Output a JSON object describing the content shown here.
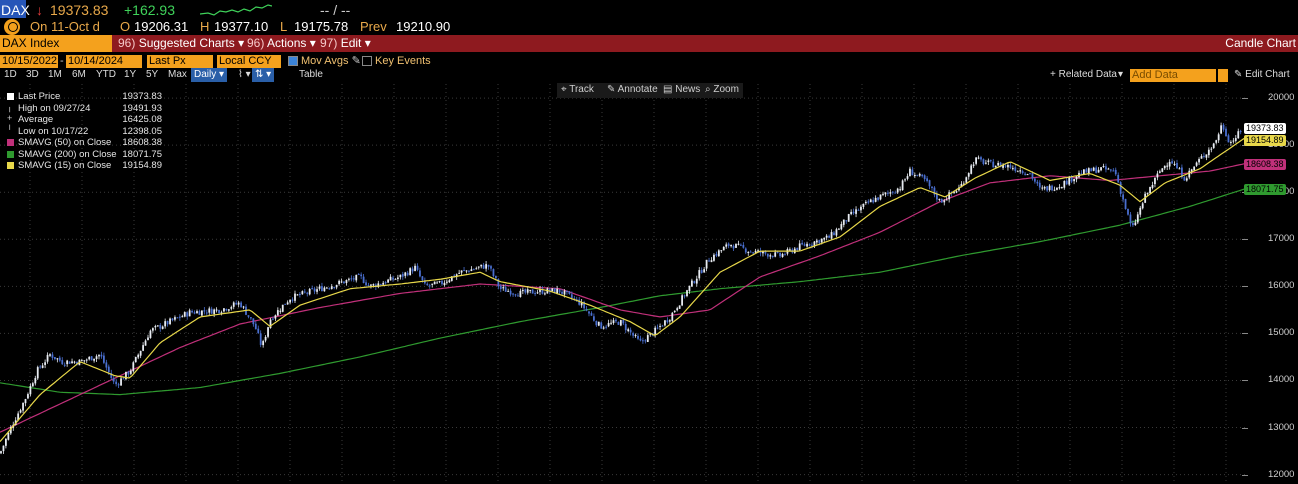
{
  "ticker": {
    "symbol": "DAX",
    "arrow": "↓",
    "last": "19373.83",
    "change": "+162.93",
    "on_label": "On 11-Oct d",
    "open_label": "O",
    "open": "19206.31",
    "high_label": "H",
    "high": "19377.10",
    "low_label": "L",
    "low": "19175.78",
    "prev_label": "Prev",
    "prev": "19210.90",
    "bid_ask": "-- / --"
  },
  "menubar": {
    "security": "DAX Index",
    "items": [
      {
        "num": "96)",
        "label": "Suggested Charts"
      },
      {
        "num": "96)",
        "label": "Actions"
      },
      {
        "num": "97)",
        "label": "Edit"
      }
    ],
    "chart_type": "Candle Chart"
  },
  "toolbar1": {
    "start_date": "10/15/2022",
    "end_date": "10/14/2024",
    "price_field": "Last Px",
    "currency": "Local CCY",
    "mov_avgs": "Mov Avgs",
    "key_events": "Key Events"
  },
  "toolbar2": {
    "periods": [
      "1D",
      "3D",
      "1M",
      "6M",
      "YTD",
      "1Y",
      "5Y",
      "Max"
    ],
    "frequency": "Daily",
    "table": "Table",
    "related_data": "+ Related Data",
    "add_data_placeholder": "Add Data",
    "edit_chart": "Edit Chart"
  },
  "chart_tools": [
    "Track",
    "Annotate",
    "News",
    "Zoom"
  ],
  "colors": {
    "sma50": "#c0307a",
    "sma200": "#2f9a2f",
    "sma15": "#e8d84a",
    "candle_up": "#e8ecf2",
    "candle_down": "#4a6fd0",
    "accent_orange": "#f4a11d",
    "menu_red": "#8e1a1f"
  },
  "chart_data": {
    "type": "candlestick",
    "title": "DAX Index",
    "x_range": [
      "10/15/2022",
      "10/14/2024"
    ],
    "ylim": [
      11800,
      20300
    ],
    "y_ticks": [
      12000,
      13000,
      14000,
      15000,
      16000,
      17000,
      18000,
      19000,
      20000
    ],
    "grid": true,
    "legend_position": "top-left",
    "legend": [
      {
        "label": "Last Price",
        "value": "19373.83",
        "marker": "square-white"
      },
      {
        "label": "High on 09/27/24",
        "value": "19491.93",
        "marker": "up-tick"
      },
      {
        "label": "Average",
        "value": "16425.08",
        "marker": "plus"
      },
      {
        "label": "Low on 10/17/22",
        "value": "12398.05",
        "marker": "down-tick"
      },
      {
        "label": "SMAVG (50)  on Close",
        "value": "18608.38",
        "marker": "magenta"
      },
      {
        "label": "SMAVG (200)  on Close",
        "value": "18071.75",
        "marker": "green"
      },
      {
        "label": "SMAVG (15)  on Close",
        "value": "19154.89",
        "marker": "yellow"
      }
    ],
    "price_path": [
      [
        0,
        12450
      ],
      [
        12,
        13050
      ],
      [
        25,
        13600
      ],
      [
        37,
        14200
      ],
      [
        50,
        14550
      ],
      [
        62,
        14400
      ],
      [
        80,
        14400
      ],
      [
        100,
        14550
      ],
      [
        115,
        13900
      ],
      [
        130,
        14200
      ],
      [
        150,
        15050
      ],
      [
        170,
        15250
      ],
      [
        190,
        15450
      ],
      [
        220,
        15500
      ],
      [
        240,
        15650
      ],
      [
        255,
        15150
      ],
      [
        262,
        14700
      ],
      [
        270,
        15300
      ],
      [
        290,
        15750
      ],
      [
        320,
        15950
      ],
      [
        360,
        16200
      ],
      [
        370,
        16000
      ],
      [
        400,
        16200
      ],
      [
        415,
        16400
      ],
      [
        425,
        16000
      ],
      [
        440,
        16050
      ],
      [
        460,
        16300
      ],
      [
        488,
        16450
      ],
      [
        500,
        15950
      ],
      [
        520,
        15850
      ],
      [
        540,
        15900
      ],
      [
        560,
        15900
      ],
      [
        580,
        15650
      ],
      [
        600,
        15150
      ],
      [
        620,
        15250
      ],
      [
        640,
        14800
      ],
      [
        655,
        15050
      ],
      [
        670,
        15350
      ],
      [
        690,
        16000
      ],
      [
        710,
        16600
      ],
      [
        730,
        16900
      ],
      [
        750,
        16750
      ],
      [
        780,
        16650
      ],
      [
        800,
        16850
      ],
      [
        830,
        17050
      ],
      [
        850,
        17500
      ],
      [
        870,
        17800
      ],
      [
        900,
        18100
      ],
      [
        910,
        18450
      ],
      [
        925,
        18250
      ],
      [
        940,
        17800
      ],
      [
        960,
        18100
      ],
      [
        975,
        18700
      ],
      [
        990,
        18600
      ],
      [
        1010,
        18550
      ],
      [
        1030,
        18400
      ],
      [
        1040,
        18050
      ],
      [
        1060,
        18150
      ],
      [
        1080,
        18400
      ],
      [
        1100,
        18500
      ],
      [
        1115,
        18450
      ],
      [
        1125,
        17700
      ],
      [
        1132,
        17200
      ],
      [
        1145,
        17900
      ],
      [
        1160,
        18450
      ],
      [
        1170,
        18700
      ],
      [
        1185,
        18300
      ],
      [
        1200,
        18700
      ],
      [
        1215,
        19050
      ],
      [
        1222,
        19450
      ],
      [
        1230,
        19050
      ],
      [
        1245,
        19374
      ]
    ],
    "sma15_path": [
      [
        0,
        12700
      ],
      [
        40,
        13700
      ],
      [
        80,
        14400
      ],
      [
        115,
        14100
      ],
      [
        130,
        14050
      ],
      [
        160,
        14800
      ],
      [
        200,
        15350
      ],
      [
        250,
        15500
      ],
      [
        270,
        15150
      ],
      [
        300,
        15600
      ],
      [
        350,
        15950
      ],
      [
        400,
        16050
      ],
      [
        440,
        16150
      ],
      [
        480,
        16300
      ],
      [
        500,
        16100
      ],
      [
        550,
        15900
      ],
      [
        590,
        15600
      ],
      [
        630,
        15250
      ],
      [
        655,
        14950
      ],
      [
        680,
        15350
      ],
      [
        720,
        16300
      ],
      [
        760,
        16750
      ],
      [
        800,
        16750
      ],
      [
        840,
        17050
      ],
      [
        880,
        17700
      ],
      [
        920,
        18100
      ],
      [
        945,
        17900
      ],
      [
        975,
        18300
      ],
      [
        1010,
        18650
      ],
      [
        1050,
        18250
      ],
      [
        1090,
        18400
      ],
      [
        1120,
        18150
      ],
      [
        1140,
        17800
      ],
      [
        1165,
        18200
      ],
      [
        1200,
        18500
      ],
      [
        1245,
        19155
      ]
    ],
    "sma50_path": [
      [
        0,
        12900
      ],
      [
        60,
        13500
      ],
      [
        120,
        14100
      ],
      [
        180,
        14700
      ],
      [
        240,
        15200
      ],
      [
        320,
        15550
      ],
      [
        400,
        15850
      ],
      [
        480,
        16050
      ],
      [
        560,
        15950
      ],
      [
        620,
        15500
      ],
      [
        660,
        15350
      ],
      [
        710,
        15500
      ],
      [
        760,
        16200
      ],
      [
        820,
        16650
      ],
      [
        880,
        17150
      ],
      [
        940,
        17800
      ],
      [
        990,
        18200
      ],
      [
        1050,
        18350
      ],
      [
        1110,
        18250
      ],
      [
        1160,
        18350
      ],
      [
        1210,
        18450
      ],
      [
        1245,
        18608
      ]
    ],
    "sma200_path": [
      [
        0,
        13950
      ],
      [
        60,
        13750
      ],
      [
        120,
        13700
      ],
      [
        200,
        13850
      ],
      [
        280,
        14150
      ],
      [
        360,
        14500
      ],
      [
        440,
        14900
      ],
      [
        520,
        15250
      ],
      [
        600,
        15550
      ],
      [
        660,
        15800
      ],
      [
        720,
        15950
      ],
      [
        800,
        16100
      ],
      [
        880,
        16300
      ],
      [
        960,
        16650
      ],
      [
        1040,
        16950
      ],
      [
        1120,
        17300
      ],
      [
        1190,
        17700
      ],
      [
        1245,
        18072
      ]
    ]
  }
}
